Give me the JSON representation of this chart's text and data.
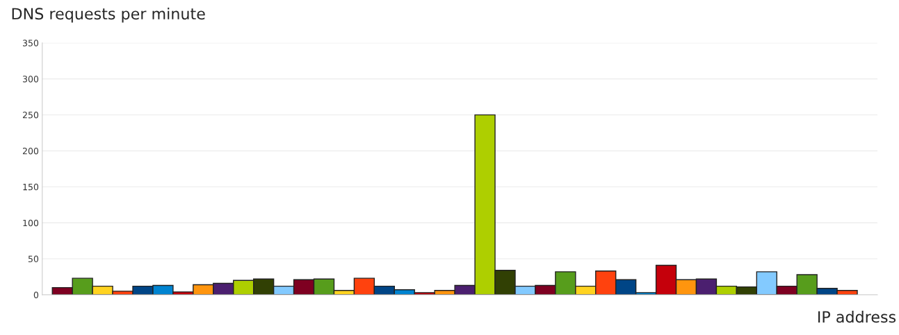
{
  "chart_data": {
    "type": "bar",
    "ylabel": "DNS requests per minute",
    "xlabel": "IP address",
    "categories": [
      null,
      null,
      null,
      null,
      null,
      null,
      null,
      null,
      null,
      null,
      null,
      null,
      null,
      null,
      null,
      null,
      null,
      null,
      null,
      null,
      null,
      null,
      null,
      null,
      null,
      null,
      null,
      null,
      null,
      null,
      null,
      null,
      null,
      null,
      null,
      null,
      null,
      null,
      null,
      null
    ],
    "values": [
      10,
      23,
      12,
      5,
      12,
      13,
      4,
      14,
      16,
      20,
      22,
      12,
      21,
      22,
      6,
      23,
      12,
      7,
      3,
      6,
      13,
      250,
      34,
      12,
      13,
      32,
      12,
      33,
      21,
      3,
      41,
      21,
      22,
      12,
      11,
      32,
      12,
      28,
      9,
      6
    ],
    "colors": [
      "#7e0021",
      "#579d1c",
      "#ffd320",
      "#ff420e",
      "#004586",
      "#0084d1",
      "#c5000b",
      "#ff950e",
      "#4b1f6f",
      "#aecf00",
      "#314004",
      "#83caff",
      "#7e0021",
      "#579d1c",
      "#ffd320",
      "#ff420e",
      "#004586",
      "#0084d1",
      "#c5000b",
      "#ff950e",
      "#4b1f6f",
      "#aecf00",
      "#314004",
      "#83caff",
      "#7e0021",
      "#579d1c",
      "#ffd320",
      "#ff420e",
      "#004586",
      "#0084d1",
      "#c5000b",
      "#ff950e",
      "#4b1f6f",
      "#aecf00",
      "#314004",
      "#83caff",
      "#7e0021",
      "#579d1c",
      "#004586",
      "#ff420e"
    ],
    "ylim": [
      0,
      350
    ],
    "yticks": [
      0,
      50,
      100,
      150,
      200,
      250,
      300,
      350
    ],
    "grid": "y",
    "legend": false
  }
}
